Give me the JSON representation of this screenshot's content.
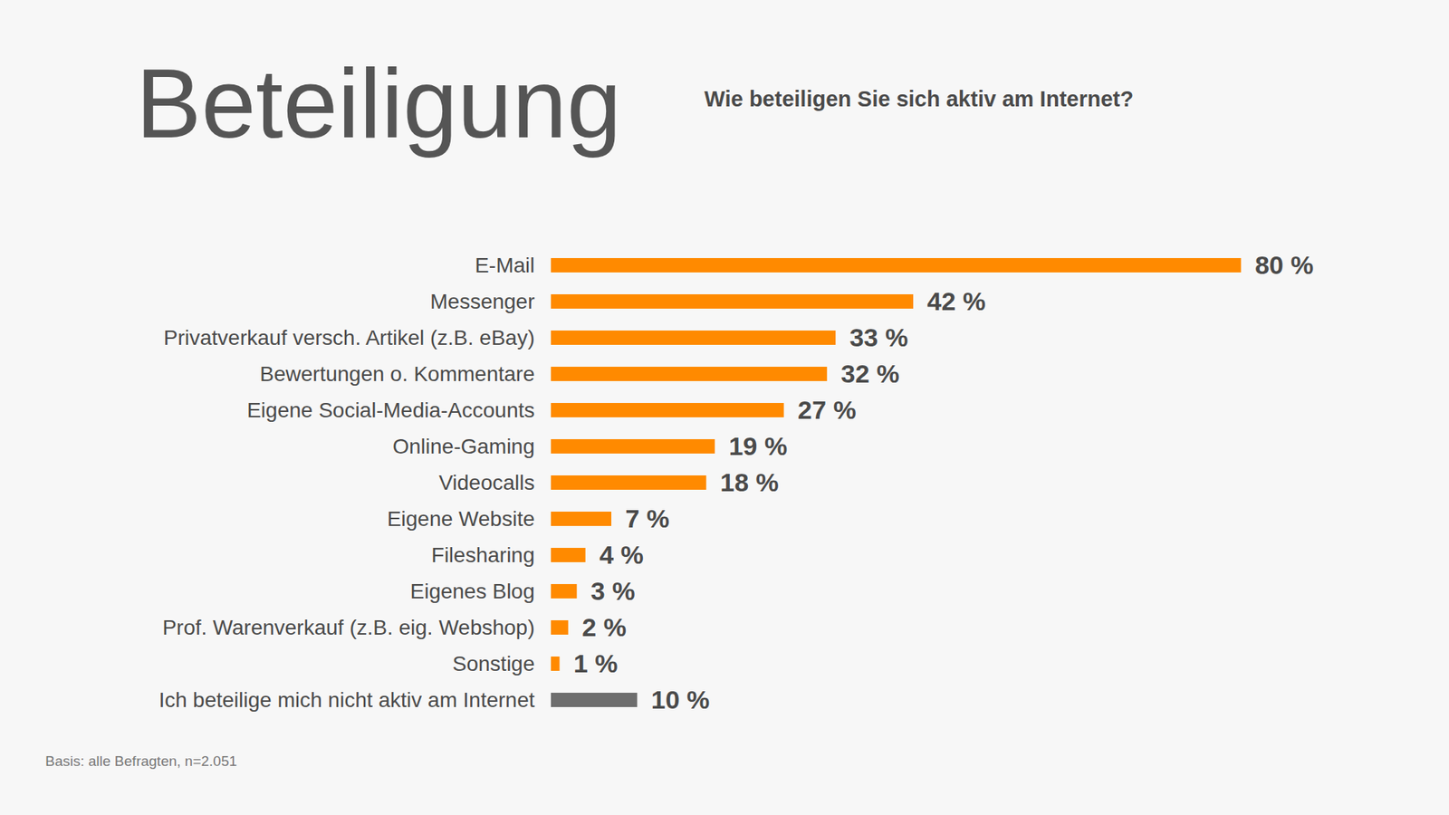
{
  "chart_data": {
    "type": "bar",
    "orientation": "horizontal",
    "title": "Beteiligung",
    "subtitle": "Wie beteiligen Sie sich aktiv am Internet?",
    "caption": "Basis: alle Befragten, n=2.051",
    "categories": [
      "E-Mail",
      "Messenger",
      "Privatverkauf versch. Artikel (z.B. eBay)",
      "Bewertungen o. Kommentare",
      "Eigene Social-Media-Accounts",
      "Online-Gaming",
      "Videocalls",
      "Eigene Website",
      "Filesharing",
      "Eigenes Blog",
      "Prof. Warenverkauf (z.B. eig. Webshop)",
      "Sonstige",
      "Ich beteilige mich nicht aktiv am Internet"
    ],
    "values": [
      80,
      42,
      33,
      32,
      27,
      19,
      18,
      7,
      4,
      3,
      2,
      1,
      10
    ],
    "value_labels": [
      "80 %",
      "42 %",
      "33 %",
      "32 %",
      "27 %",
      "19 %",
      "18 %",
      "7 %",
      "4 %",
      "3 %",
      "2 %",
      "1 %",
      "10 %"
    ],
    "colors": [
      "#ff8a00",
      "#ff8a00",
      "#ff8a00",
      "#ff8a00",
      "#ff8a00",
      "#ff8a00",
      "#ff8a00",
      "#ff8a00",
      "#ff8a00",
      "#ff8a00",
      "#ff8a00",
      "#ff8a00",
      "#6e6e6e"
    ],
    "xlim": [
      0,
      100
    ],
    "data_labels": true,
    "tick_labels": "y",
    "grid": false
  }
}
